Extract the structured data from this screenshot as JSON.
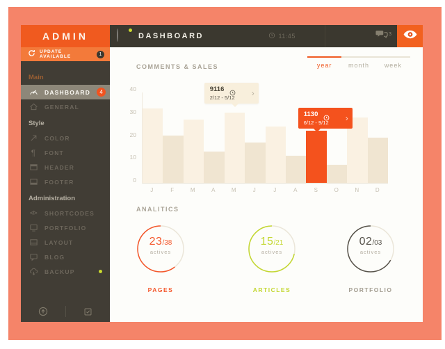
{
  "frame": {
    "color": "#f58469",
    "accent": "#f05a1f"
  },
  "sidebar": {
    "title": "ADMIN",
    "update": {
      "label": "UPDATE AVAILABLE",
      "badge": "1"
    },
    "sections": [
      {
        "label": "Main",
        "accent": true,
        "items": [
          {
            "label": "DASHBOARD",
            "icon": "gauge",
            "active": true,
            "badge": "4"
          },
          {
            "label": "GENERAL",
            "icon": "home"
          }
        ]
      },
      {
        "label": "Style",
        "accent": false,
        "items": [
          {
            "label": "COLOR",
            "icon": "picker"
          },
          {
            "label": "FONT",
            "icon": "pilcrow"
          },
          {
            "label": "HEADER",
            "icon": "header"
          },
          {
            "label": "FOOTER",
            "icon": "footer"
          }
        ]
      },
      {
        "label": "Administration",
        "accent": false,
        "items": [
          {
            "label": "SHORTCODES",
            "icon": "code"
          },
          {
            "label": "PORTFOLIO",
            "icon": "monitor"
          },
          {
            "label": "LAYOUT",
            "icon": "layout"
          },
          {
            "label": "BLOG",
            "icon": "chat"
          },
          {
            "label": "BACKUP",
            "icon": "cloud",
            "dot": true
          }
        ]
      }
    ]
  },
  "topbar": {
    "title": "DASHBOARD",
    "time": "11:45",
    "messages_count": "3"
  },
  "chart_header": {
    "title": "COMMENTS & SALES",
    "tabs": [
      {
        "label": "year",
        "active": true
      },
      {
        "label": "month",
        "active": false
      },
      {
        "label": "week",
        "active": false
      }
    ]
  },
  "chart_data": {
    "type": "bar",
    "title": "COMMENTS & SALES",
    "categories": [
      "J",
      "F",
      "M",
      "A",
      "M",
      "J",
      "J",
      "A",
      "S",
      "O",
      "N",
      "D"
    ],
    "values": [
      33,
      21,
      28,
      14,
      31,
      18,
      25,
      12,
      23,
      8,
      29,
      20
    ],
    "ylim": [
      0,
      40
    ],
    "yticks": [
      40,
      30,
      20,
      10,
      0
    ],
    "grid": false,
    "highlight_index": 8,
    "colors": {
      "bar_light": "#faf1e2",
      "bar_dark": "#f0e5d1",
      "highlight": "#f4521d"
    },
    "tooltips": [
      {
        "value": "9116",
        "range": "2/12 - 5/12",
        "anchor_index": 4,
        "style": "cream"
      },
      {
        "value": "1130",
        "range": "6/12 - 9/12",
        "anchor_index": 8,
        "style": "orange"
      }
    ]
  },
  "analytics": {
    "title": "ANALITICS",
    "gauges": [
      {
        "value": "23",
        "total": "/38",
        "unit": "actives",
        "label": "PAGES",
        "color": "#f4572b",
        "fraction": 0.605
      },
      {
        "value": "15",
        "total": "/21",
        "unit": "actives",
        "label": "ARTICLES",
        "color": "#c3d730",
        "fraction": 0.714
      },
      {
        "value": "02",
        "total": "/03",
        "unit": "actives",
        "label": "PORTFOLIO",
        "color": "#56524a",
        "fraction": 0.667
      }
    ]
  }
}
